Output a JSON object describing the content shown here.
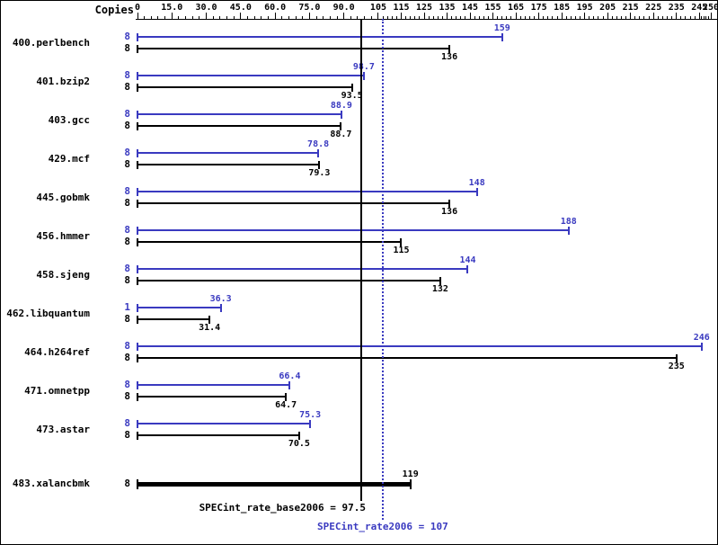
{
  "header": {
    "copies_label": "Copies"
  },
  "colors": {
    "peak": "#3a3ac0",
    "base": "#000000",
    "background": "#ffffff"
  },
  "axis": {
    "min": 0,
    "max": 250,
    "ticks": [
      {
        "value": 0,
        "label": "0"
      },
      {
        "value": 15,
        "label": "15.0"
      },
      {
        "value": 30,
        "label": "30.0"
      },
      {
        "value": 45,
        "label": "45.0"
      },
      {
        "value": 60,
        "label": "60.0"
      },
      {
        "value": 75,
        "label": "75.0"
      },
      {
        "value": 90,
        "label": "90.0"
      },
      {
        "value": 105,
        "label": "105"
      },
      {
        "value": 115,
        "label": "115"
      },
      {
        "value": 125,
        "label": "125"
      },
      {
        "value": 135,
        "label": "135"
      },
      {
        "value": 145,
        "label": "145"
      },
      {
        "value": 155,
        "label": "155"
      },
      {
        "value": 165,
        "label": "165"
      },
      {
        "value": 175,
        "label": "175"
      },
      {
        "value": 185,
        "label": "185"
      },
      {
        "value": 195,
        "label": "195"
      },
      {
        "value": 205,
        "label": "205"
      },
      {
        "value": 215,
        "label": "215"
      },
      {
        "value": 225,
        "label": "225"
      },
      {
        "value": 235,
        "label": "235"
      },
      {
        "value": 245,
        "label": "245"
      },
      {
        "value": 250,
        "label": "250"
      }
    ]
  },
  "chart_data": {
    "type": "bar",
    "orientation": "horizontal",
    "xlim": [
      0,
      250
    ],
    "series": [
      "peak",
      "base"
    ],
    "benchmarks": [
      {
        "name": "400.perlbench",
        "peak_copies": "8",
        "peak": 159,
        "peak_label": "159",
        "base_copies": "8",
        "base": 136,
        "base_label": "136"
      },
      {
        "name": "401.bzip2",
        "peak_copies": "8",
        "peak": 98.7,
        "peak_label": "98.7",
        "base_copies": "8",
        "base": 93.5,
        "base_label": "93.5"
      },
      {
        "name": "403.gcc",
        "peak_copies": "8",
        "peak": 88.9,
        "peak_label": "88.9",
        "base_copies": "8",
        "base": 88.7,
        "base_label": "88.7"
      },
      {
        "name": "429.mcf",
        "peak_copies": "8",
        "peak": 78.8,
        "peak_label": "78.8",
        "base_copies": "8",
        "base": 79.3,
        "base_label": "79.3"
      },
      {
        "name": "445.gobmk",
        "peak_copies": "8",
        "peak": 148,
        "peak_label": "148",
        "base_copies": "8",
        "base": 136,
        "base_label": "136"
      },
      {
        "name": "456.hmmer",
        "peak_copies": "8",
        "peak": 188,
        "peak_label": "188",
        "base_copies": "8",
        "base": 115,
        "base_label": "115"
      },
      {
        "name": "458.sjeng",
        "peak_copies": "8",
        "peak": 144,
        "peak_label": "144",
        "base_copies": "8",
        "base": 132,
        "base_label": "132"
      },
      {
        "name": "462.libquantum",
        "peak_copies": "1",
        "peak": 36.3,
        "peak_label": "36.3",
        "base_copies": "8",
        "base": 31.4,
        "base_label": "31.4"
      },
      {
        "name": "464.h264ref",
        "peak_copies": "8",
        "peak": 246,
        "peak_label": "246",
        "base_copies": "8",
        "base": 235,
        "base_label": "235"
      },
      {
        "name": "471.omnetpp",
        "peak_copies": "8",
        "peak": 66.4,
        "peak_label": "66.4",
        "base_copies": "8",
        "base": 64.7,
        "base_label": "64.7"
      },
      {
        "name": "473.astar",
        "peak_copies": "8",
        "peak": 75.3,
        "peak_label": "75.3",
        "base_copies": "8",
        "base": 70.5,
        "base_label": "70.5"
      },
      {
        "name": "483.xalancbmk",
        "base_only": true,
        "base_copies": "8",
        "base": 119,
        "base_label": "119"
      }
    ],
    "reference_lines": [
      {
        "metric": "SPECint_rate_base2006",
        "value": 97.5,
        "style": "solid",
        "color": "#000000"
      },
      {
        "metric": "SPECint_rate2006",
        "value": 107,
        "style": "dotted",
        "color": "#3a3ac0"
      }
    ]
  },
  "footer": {
    "base_summary": "SPECint_rate_base2006 = 97.5",
    "peak_summary": "SPECint_rate2006 = 107"
  }
}
